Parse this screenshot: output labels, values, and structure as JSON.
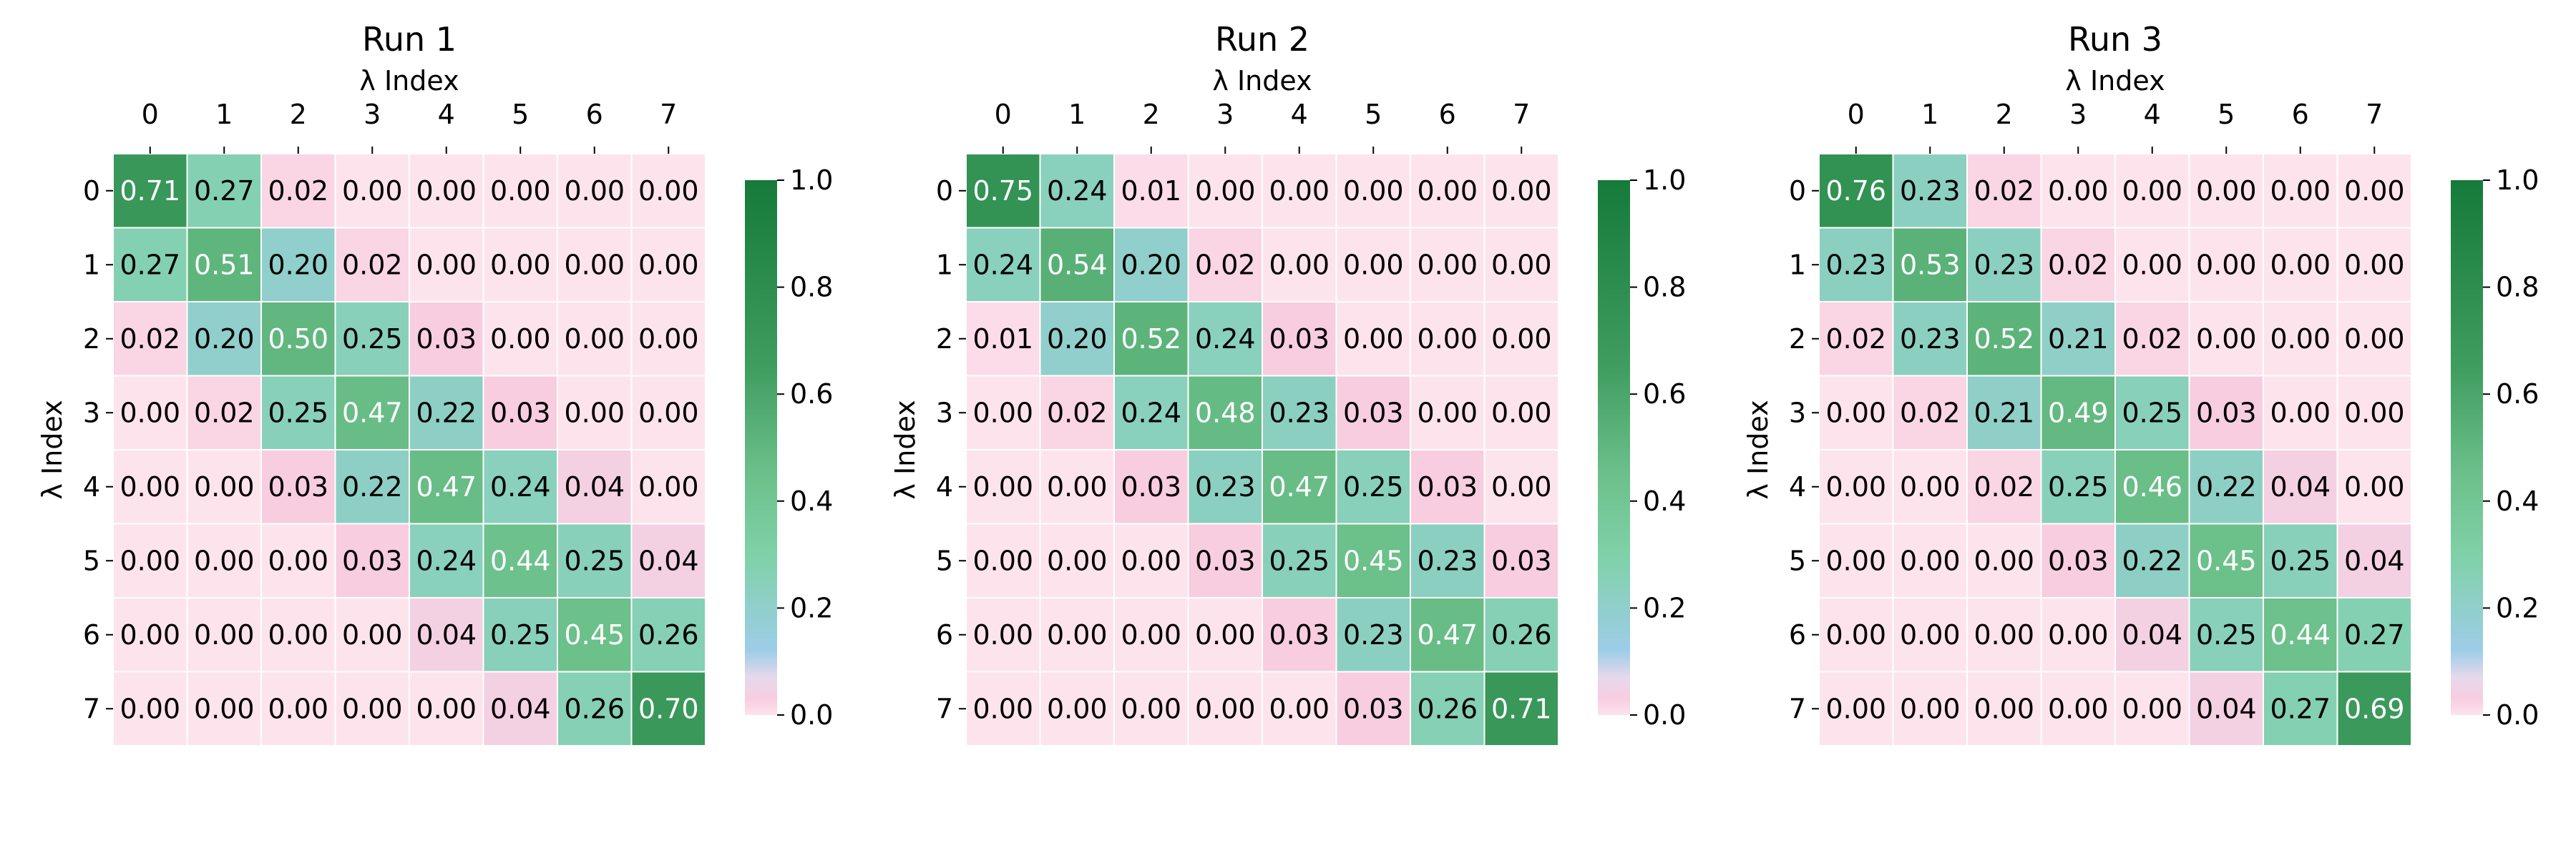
{
  "chart_data": [
    {
      "type": "heatmap",
      "title": "Run 1",
      "xlabel": "λ Index",
      "ylabel": "λ Index",
      "x_ticks": [
        "0",
        "1",
        "2",
        "3",
        "4",
        "5",
        "6",
        "7"
      ],
      "y_ticks": [
        "0",
        "1",
        "2",
        "3",
        "4",
        "5",
        "6",
        "7"
      ],
      "values": [
        [
          0.71,
          0.27,
          0.02,
          0.0,
          0.0,
          0.0,
          0.0,
          0.0
        ],
        [
          0.27,
          0.51,
          0.2,
          0.02,
          0.0,
          0.0,
          0.0,
          0.0
        ],
        [
          0.02,
          0.2,
          0.5,
          0.25,
          0.03,
          0.0,
          0.0,
          0.0
        ],
        [
          0.0,
          0.02,
          0.25,
          0.47,
          0.22,
          0.03,
          0.0,
          0.0
        ],
        [
          0.0,
          0.0,
          0.03,
          0.22,
          0.47,
          0.24,
          0.04,
          0.0
        ],
        [
          0.0,
          0.0,
          0.0,
          0.03,
          0.24,
          0.44,
          0.25,
          0.04
        ],
        [
          0.0,
          0.0,
          0.0,
          0.0,
          0.04,
          0.25,
          0.45,
          0.26
        ],
        [
          0.0,
          0.0,
          0.0,
          0.0,
          0.0,
          0.04,
          0.26,
          0.7
        ]
      ],
      "colorbar": {
        "min": 0.0,
        "max": 1.0,
        "ticks": [
          "0.0",
          "0.2",
          "0.4",
          "0.6",
          "0.8",
          "1.0"
        ]
      }
    },
    {
      "type": "heatmap",
      "title": "Run 2",
      "xlabel": "λ Index",
      "ylabel": "λ Index",
      "x_ticks": [
        "0",
        "1",
        "2",
        "3",
        "4",
        "5",
        "6",
        "7"
      ],
      "y_ticks": [
        "0",
        "1",
        "2",
        "3",
        "4",
        "5",
        "6",
        "7"
      ],
      "values": [
        [
          0.75,
          0.24,
          0.01,
          0.0,
          0.0,
          0.0,
          0.0,
          0.0
        ],
        [
          0.24,
          0.54,
          0.2,
          0.02,
          0.0,
          0.0,
          0.0,
          0.0
        ],
        [
          0.01,
          0.2,
          0.52,
          0.24,
          0.03,
          0.0,
          0.0,
          0.0
        ],
        [
          0.0,
          0.02,
          0.24,
          0.48,
          0.23,
          0.03,
          0.0,
          0.0
        ],
        [
          0.0,
          0.0,
          0.03,
          0.23,
          0.47,
          0.25,
          0.03,
          0.0
        ],
        [
          0.0,
          0.0,
          0.0,
          0.03,
          0.25,
          0.45,
          0.23,
          0.03
        ],
        [
          0.0,
          0.0,
          0.0,
          0.0,
          0.03,
          0.23,
          0.47,
          0.26
        ],
        [
          0.0,
          0.0,
          0.0,
          0.0,
          0.0,
          0.03,
          0.26,
          0.71
        ]
      ],
      "colorbar": {
        "min": 0.0,
        "max": 1.0,
        "ticks": [
          "0.0",
          "0.2",
          "0.4",
          "0.6",
          "0.8",
          "1.0"
        ]
      }
    },
    {
      "type": "heatmap",
      "title": "Run 3",
      "xlabel": "λ Index",
      "ylabel": "λ Index",
      "x_ticks": [
        "0",
        "1",
        "2",
        "3",
        "4",
        "5",
        "6",
        "7"
      ],
      "y_ticks": [
        "0",
        "1",
        "2",
        "3",
        "4",
        "5",
        "6",
        "7"
      ],
      "values": [
        [
          0.76,
          0.23,
          0.02,
          0.0,
          0.0,
          0.0,
          0.0,
          0.0
        ],
        [
          0.23,
          0.53,
          0.23,
          0.02,
          0.0,
          0.0,
          0.0,
          0.0
        ],
        [
          0.02,
          0.23,
          0.52,
          0.21,
          0.02,
          0.0,
          0.0,
          0.0
        ],
        [
          0.0,
          0.02,
          0.21,
          0.49,
          0.25,
          0.03,
          0.0,
          0.0
        ],
        [
          0.0,
          0.0,
          0.02,
          0.25,
          0.46,
          0.22,
          0.04,
          0.0
        ],
        [
          0.0,
          0.0,
          0.0,
          0.03,
          0.22,
          0.45,
          0.25,
          0.04
        ],
        [
          0.0,
          0.0,
          0.0,
          0.0,
          0.04,
          0.25,
          0.44,
          0.27
        ],
        [
          0.0,
          0.0,
          0.0,
          0.0,
          0.0,
          0.04,
          0.27,
          0.69
        ]
      ],
      "colorbar": {
        "min": 0.0,
        "max": 1.0,
        "ticks": [
          "0.0",
          "0.2",
          "0.4",
          "0.6",
          "0.8",
          "1.0"
        ]
      }
    }
  ],
  "colors": {
    "scale": [
      "#fde4ec",
      "#f8cde0",
      "#e6d9ec",
      "#9ecde8",
      "#7fd1a7",
      "#6cc08a",
      "#3f9d5f",
      "#157a3a"
    ],
    "label_dark": "#000000",
    "label_light": "#ffffff",
    "grid": "#ffffff"
  }
}
